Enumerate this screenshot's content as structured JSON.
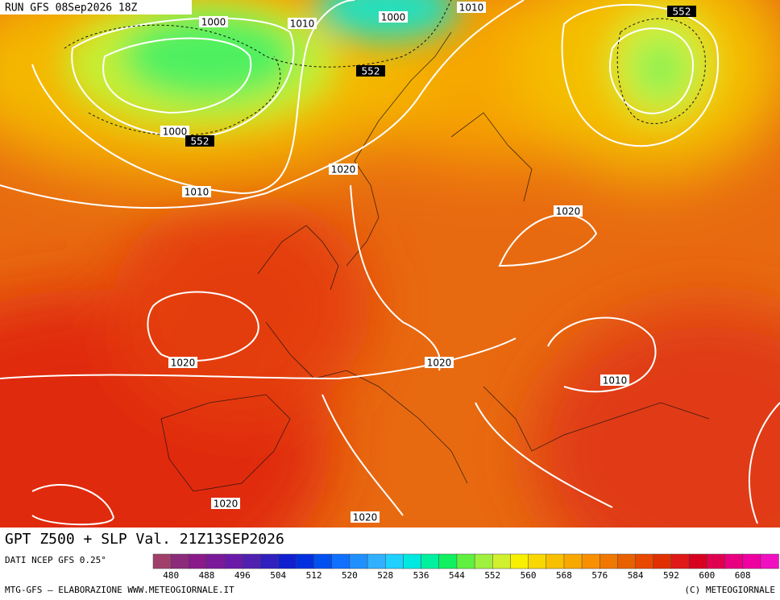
{
  "header": {
    "run": "RUN GFS 08Sep2026 18Z"
  },
  "map": {
    "isobar_labels": [
      1000,
      1010,
      1000,
      1010,
      552,
      552,
      1000,
      552,
      1020,
      1010,
      1020,
      1020,
      1020,
      1010,
      1020,
      1020
    ]
  },
  "title": "GPT Z500 + SLP Val. 21Z13SEP2026",
  "source": "DATI NCEP GFS 0.25°",
  "colorbar": {
    "ticks": [
      480,
      488,
      496,
      504,
      512,
      520,
      528,
      536,
      544,
      552,
      560,
      568,
      576,
      584,
      592,
      600,
      608
    ],
    "colors": [
      "#a0406a",
      "#8b2b7a",
      "#8a1a8a",
      "#7a1a9a",
      "#6a1aa8",
      "#5020b0",
      "#3020c0",
      "#1020d0",
      "#0030e0",
      "#0050f0",
      "#1070ff",
      "#2090ff",
      "#30b0ff",
      "#20d0ff",
      "#00e8e0",
      "#00f0a0",
      "#10f060",
      "#60f040",
      "#a0f040",
      "#d0f030",
      "#f8f000",
      "#f8d800",
      "#f8c000",
      "#f8a800",
      "#f89000",
      "#f07800",
      "#e86000",
      "#e84800",
      "#e03000",
      "#e01818",
      "#d80020",
      "#e00050",
      "#e80080",
      "#f000a0",
      "#f010c0"
    ]
  },
  "credits": {
    "left": "MTG-GFS — ELABORAZIONE WWW.METEOGIORNALE.IT",
    "right": "(C) METEOGIORNALE"
  }
}
